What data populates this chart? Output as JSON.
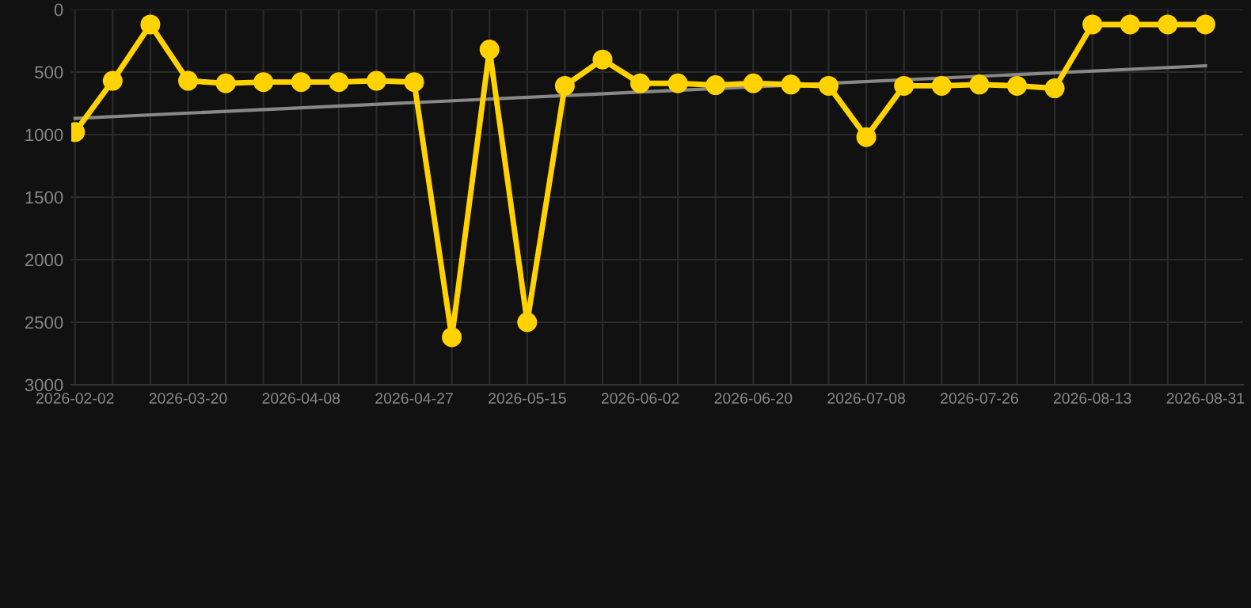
{
  "chart_data": {
    "type": "line",
    "categories": [
      "2026-02-02",
      null,
      null,
      "2026-03-20",
      null,
      null,
      "2026-04-08",
      null,
      null,
      "2026-04-27",
      null,
      null,
      "2026-05-15",
      null,
      null,
      "2026-06-02",
      null,
      null,
      "2026-06-20",
      null,
      null,
      "2026-07-08",
      null,
      null,
      "2026-07-26",
      null,
      null,
      "2026-08-13",
      null,
      null,
      "2026-08-31"
    ],
    "series": [
      {
        "color": "#ffd200",
        "marker": "circle",
        "values": [
          980,
          570,
          120,
          570,
          590,
          580,
          580,
          580,
          570,
          580,
          2620,
          320,
          2500,
          610,
          400,
          590,
          590,
          605,
          590,
          600,
          610,
          1020,
          610,
          610,
          600,
          610,
          630,
          120,
          120,
          120,
          120
        ]
      },
      {
        "color": "#888888",
        "marker": "none",
        "values": [
          870,
          null,
          null,
          null,
          null,
          null,
          null,
          null,
          null,
          null,
          null,
          null,
          null,
          null,
          null,
          null,
          null,
          null,
          null,
          null,
          null,
          null,
          null,
          null,
          null,
          null,
          null,
          null,
          null,
          null,
          450
        ]
      }
    ],
    "ylim": [
      3000,
      0
    ],
    "yticks": [
      0,
      500,
      1000,
      1500,
      2000,
      2500,
      3000
    ],
    "grid": true,
    "line_style": "solid"
  }
}
